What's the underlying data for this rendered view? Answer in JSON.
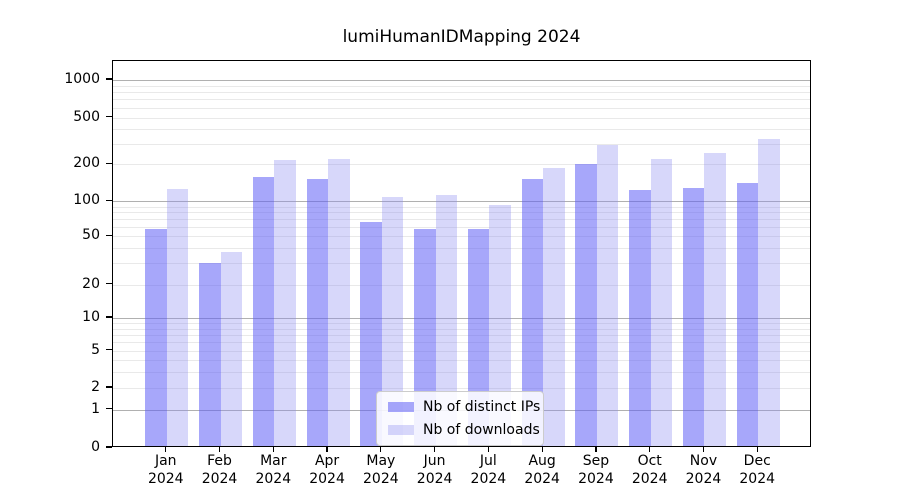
{
  "title": "lumiHumanIDMapping 2024",
  "chart_data": {
    "type": "bar",
    "title": "lumiHumanIDMapping 2024",
    "categories": [
      {
        "month": "Jan",
        "year": "2024"
      },
      {
        "month": "Feb",
        "year": "2024"
      },
      {
        "month": "Mar",
        "year": "2024"
      },
      {
        "month": "Apr",
        "year": "2024"
      },
      {
        "month": "May",
        "year": "2024"
      },
      {
        "month": "Jun",
        "year": "2024"
      },
      {
        "month": "Jul",
        "year": "2024"
      },
      {
        "month": "Aug",
        "year": "2024"
      },
      {
        "month": "Sep",
        "year": "2024"
      },
      {
        "month": "Oct",
        "year": "2024"
      },
      {
        "month": "Nov",
        "year": "2024"
      },
      {
        "month": "Dec",
        "year": "2024"
      }
    ],
    "series": [
      {
        "name": "Nb of distinct IPs",
        "color": "rgba(95,95,246,0.55)",
        "values": [
          56,
          29,
          152,
          145,
          64,
          55,
          56,
          147,
          195,
          120,
          123,
          137
        ]
      },
      {
        "name": "Nb of downloads",
        "color": "rgba(140,140,242,0.35)",
        "values": [
          122,
          36,
          210,
          215,
          104,
          108,
          89,
          180,
          280,
          213,
          240,
          318
        ]
      }
    ],
    "y_axis": {
      "scale": "symlog",
      "tick_labels": [
        1000,
        500,
        200,
        100,
        50,
        20,
        10,
        5,
        2,
        1,
        0
      ],
      "major_gridlines": [
        1,
        10,
        100,
        1000
      ],
      "minor_gridline_subs": [
        2,
        3,
        4,
        5,
        6,
        7,
        8,
        9
      ],
      "range": [
        0,
        1400
      ]
    },
    "xlabel": "",
    "ylabel": "",
    "grid": true,
    "legend": {
      "position": "lower-center",
      "entries": [
        "Nb of distinct IPs",
        "Nb of downloads"
      ]
    }
  }
}
